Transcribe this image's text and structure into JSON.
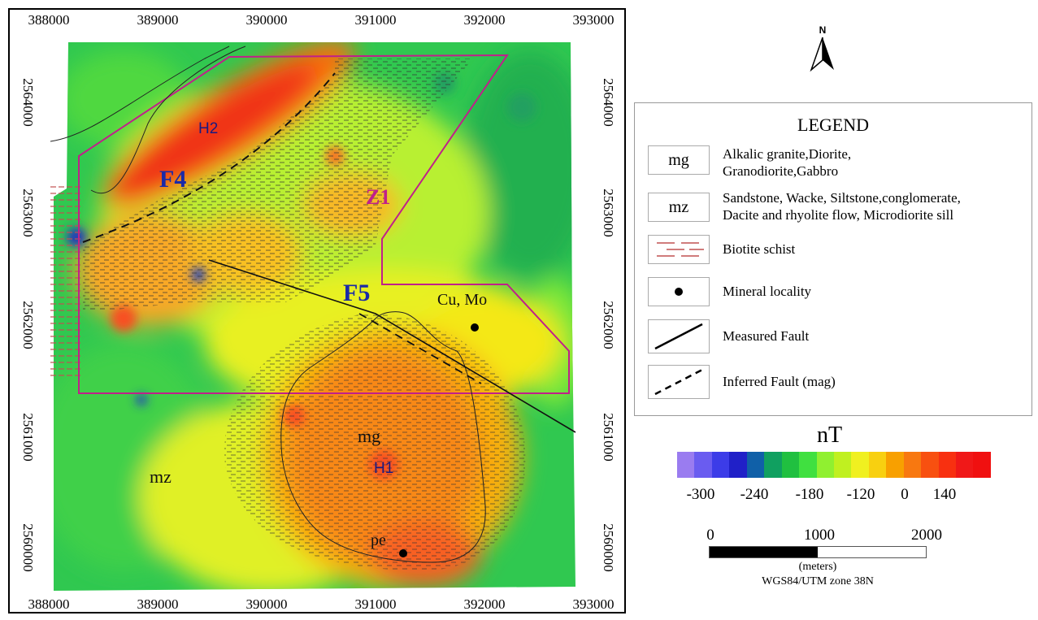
{
  "map": {
    "x_coords": [
      "388000",
      "389000",
      "390000",
      "391000",
      "392000",
      "393000"
    ],
    "y_coords_left": [
      "2564000",
      "2563000",
      "2562000",
      "2561000",
      "2560000"
    ],
    "y_coords_right": [
      "2564000",
      "2563000",
      "2562000",
      "2561000",
      "2560000"
    ],
    "labels": {
      "f4": "F4",
      "f5": "F5",
      "h1": "H1",
      "h2": "H2",
      "z1": "Z1",
      "mg": "mg",
      "mz": "mz",
      "cu_mo": "Cu, Mo",
      "pe": "pe"
    },
    "colors": {
      "fault_label": "#1a2aa8",
      "zone_outline": "#c0208a",
      "schist": "#b04040"
    }
  },
  "north": {
    "label": "N"
  },
  "legend": {
    "title": "LEGEND",
    "items": [
      {
        "symbol_text": "mg",
        "text_lines": [
          "Alkalic granite,Diorite,",
          "Granodiorite,Gabbro"
        ]
      },
      {
        "symbol_text": "mz",
        "text_lines": [
          "Sandstone, Wacke, Siltstone,conglomerate,",
          "Dacite and rhyolite flow, Microdiorite sill"
        ]
      },
      {
        "symbol": "schist-pattern",
        "text_lines": [
          "Biotite schist"
        ]
      },
      {
        "symbol": "dot",
        "text_lines": [
          "Mineral locality"
        ]
      },
      {
        "symbol": "solid-line",
        "text_lines": [
          "Measured Fault"
        ]
      },
      {
        "symbol": "dashed-line",
        "text_lines": [
          "Inferred Fault (mag)"
        ]
      }
    ]
  },
  "colorbar": {
    "title": "nT",
    "colors": [
      "#9a7cf0",
      "#6a5cf0",
      "#3c3ce8",
      "#2020c8",
      "#1060a8",
      "#10a060",
      "#20c040",
      "#40e040",
      "#90f030",
      "#c0f020",
      "#f0f020",
      "#f8d010",
      "#f8a000",
      "#f87810",
      "#f85010",
      "#f83010",
      "#f01818",
      "#f01010"
    ],
    "ticks": [
      "-300",
      "-240",
      "-180",
      "-120",
      "0",
      "140"
    ]
  },
  "scale_bar": {
    "labels": [
      "0",
      "1000",
      "2000"
    ],
    "unit": "(meters)",
    "projection": "WGS84/UTM zone 38N"
  }
}
